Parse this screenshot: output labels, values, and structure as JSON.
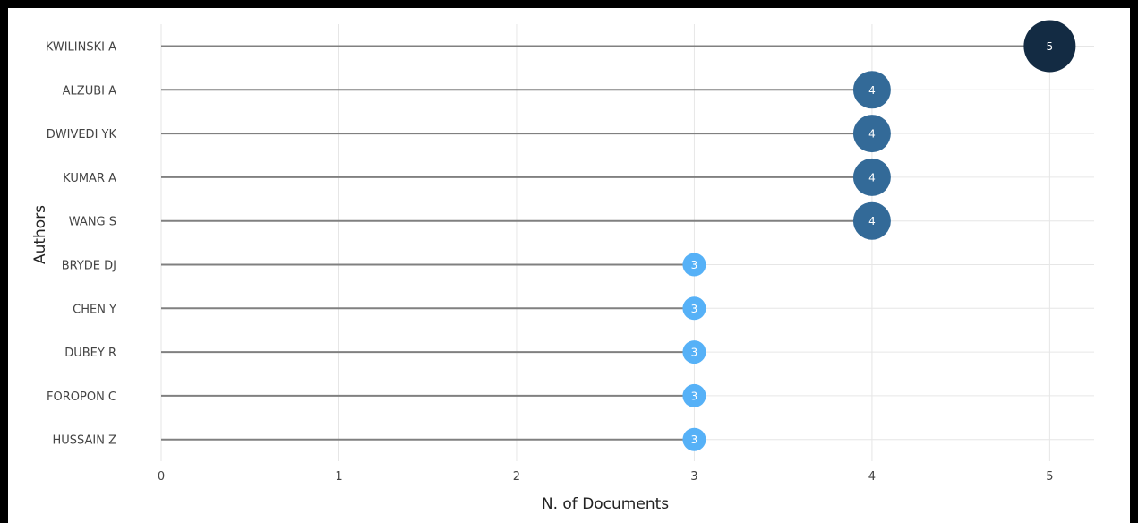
{
  "chart_data": {
    "type": "lollipop",
    "title": "",
    "xlabel": "N. of Documents",
    "ylabel": "Authors",
    "xlim": [
      0,
      5.25
    ],
    "x_ticks": [
      0,
      1,
      2,
      3,
      4,
      5
    ],
    "grid": true,
    "categories": [
      "KWILINSKI A",
      "ALZUBI A",
      "DWIVEDI YK",
      "KUMAR A",
      "WANG S",
      "BRYDE DJ",
      "CHEN Y",
      "DUBEY R",
      "FOROPON C",
      "HUSSAIN Z"
    ],
    "values": [
      5,
      4,
      4,
      4,
      4,
      3,
      3,
      3,
      3,
      3
    ],
    "colors": {
      "5": "#132b43",
      "4": "#336a98",
      "3": "#56b1f7",
      "stem": "#808080",
      "grid": "#e6e6e6"
    }
  }
}
